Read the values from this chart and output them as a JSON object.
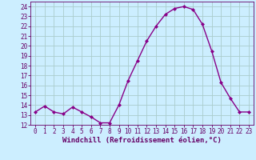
{
  "x": [
    0,
    1,
    2,
    3,
    4,
    5,
    6,
    7,
    8,
    9,
    10,
    11,
    12,
    13,
    14,
    15,
    16,
    17,
    18,
    19,
    20,
    21,
    22,
    23
  ],
  "y": [
    13.3,
    13.9,
    13.3,
    13.1,
    13.8,
    13.3,
    12.8,
    12.2,
    12.2,
    14.0,
    16.5,
    18.5,
    20.5,
    22.0,
    23.2,
    23.8,
    24.0,
    23.7,
    22.2,
    19.5,
    16.3,
    14.7,
    13.3,
    13.3
  ],
  "line_color": "#880088",
  "marker": "D",
  "marker_size": 2.0,
  "bg_color": "#cceeff",
  "grid_color": "#aacccc",
  "xlabel": "Windchill (Refroidissement éolien,°C)",
  "xlim": [
    -0.5,
    23.5
  ],
  "ylim": [
    12,
    24.5
  ],
  "yticks": [
    12,
    13,
    14,
    15,
    16,
    17,
    18,
    19,
    20,
    21,
    22,
    23,
    24
  ],
  "xticks": [
    0,
    1,
    2,
    3,
    4,
    5,
    6,
    7,
    8,
    9,
    10,
    11,
    12,
    13,
    14,
    15,
    16,
    17,
    18,
    19,
    20,
    21,
    22,
    23
  ],
  "tick_label_size": 5.5,
  "xlabel_size": 6.5,
  "line_width": 1.0,
  "axis_color": "#660066"
}
